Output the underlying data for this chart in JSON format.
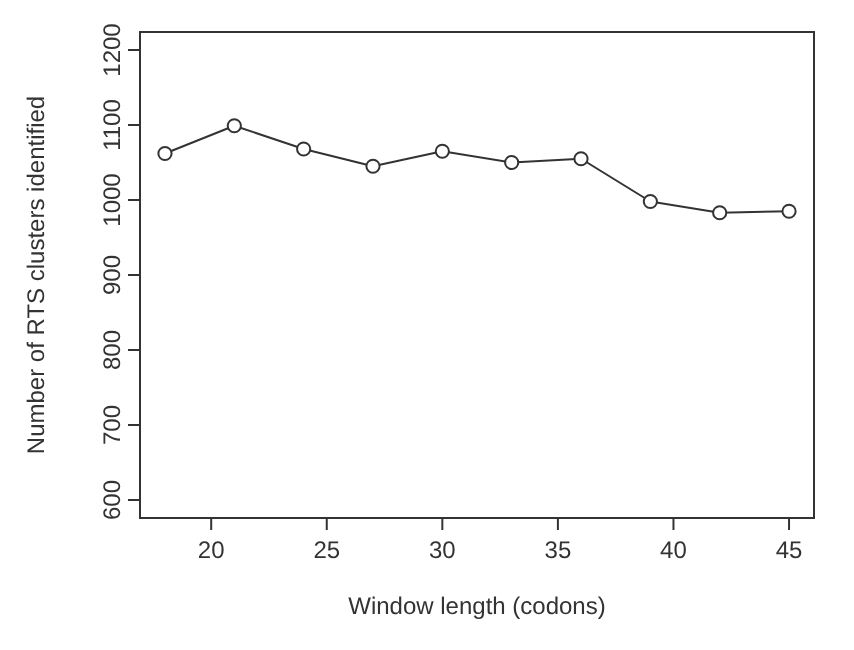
{
  "chart_data": {
    "type": "line",
    "xlabel": "Window length (codons)",
    "ylabel": "Number of RTS clusters identified",
    "x": [
      18,
      21,
      24,
      27,
      30,
      33,
      36,
      39,
      42,
      45
    ],
    "series": [
      {
        "color": "#333333",
        "values": [
          1062,
          1099,
          1068,
          1045,
          1065,
          1050,
          1055,
          998,
          983,
          985
        ]
      }
    ],
    "xlim": [
      16.92,
      46.08
    ],
    "ylim": [
      576,
      1224
    ],
    "xticks": [
      20,
      25,
      30,
      35,
      40,
      45
    ],
    "yticks": [
      600,
      700,
      800,
      900,
      1000,
      1100,
      1200
    ],
    "marker": "circle",
    "line_style": "solid"
  }
}
